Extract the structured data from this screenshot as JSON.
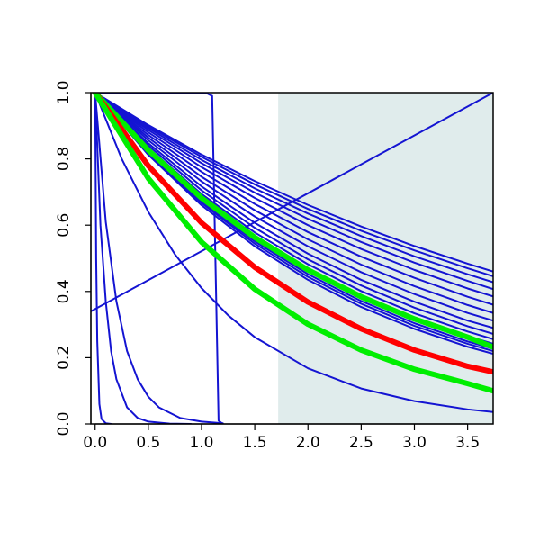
{
  "chart_data": {
    "type": "line",
    "title": "",
    "xlabel": "",
    "ylabel": "",
    "xlim": [
      -0.04,
      3.74
    ],
    "ylim": [
      0,
      1
    ],
    "x_ticks": [
      0,
      0.5,
      1,
      1.5,
      2,
      2.5,
      3,
      3.5
    ],
    "x_tick_labels": [
      "0.0",
      "0.5",
      "1.0",
      "1.5",
      "2.0",
      "2.5",
      "3.0",
      "3.5"
    ],
    "y_ticks": [
      0,
      0.2,
      0.4,
      0.6,
      0.8,
      1
    ],
    "y_tick_labels": [
      "0.0",
      "0.2",
      "0.4",
      "0.6",
      "0.8",
      "1.0"
    ],
    "grid": false,
    "legend": "none",
    "shaded_region": {
      "x_from": 1.72,
      "x_to": 3.74,
      "color": "#e0ecec"
    },
    "colors": {
      "blue": "#1414d2",
      "red": "#ff0000",
      "green": "#00ee00"
    },
    "series": [
      {
        "x": [
          0,
          0.5,
          1,
          1.5,
          2,
          2.5,
          3,
          3.5,
          3.74
        ],
        "y": [
          1,
          0.902,
          0.813,
          0.733,
          0.661,
          0.596,
          0.537,
          0.484,
          0.46
        ],
        "color": "#1414d2",
        "width": 2
      },
      {
        "x": [
          0,
          0.5,
          1,
          1.5,
          2,
          2.5,
          3,
          3.5,
          3.74
        ],
        "y": [
          1,
          0.898,
          0.806,
          0.723,
          0.649,
          0.583,
          0.524,
          0.47,
          0.446
        ],
        "color": "#1414d2",
        "width": 2
      },
      {
        "x": [
          0,
          0.5,
          1,
          1.5,
          2,
          2.5,
          3,
          3.5,
          3.74
        ],
        "y": [
          1,
          0.893,
          0.797,
          0.711,
          0.635,
          0.567,
          0.506,
          0.452,
          0.428
        ],
        "color": "#1414d2",
        "width": 2
      },
      {
        "x": [
          0,
          0.5,
          1,
          1.5,
          2,
          2.5,
          3,
          3.5,
          3.74
        ],
        "y": [
          1,
          0.887,
          0.787,
          0.698,
          0.619,
          0.549,
          0.487,
          0.432,
          0.407
        ],
        "color": "#1414d2",
        "width": 2
      },
      {
        "x": [
          0,
          0.5,
          1,
          1.5,
          2,
          2.5,
          3,
          3.5,
          3.74
        ],
        "y": [
          1,
          0.88,
          0.775,
          0.682,
          0.6,
          0.528,
          0.465,
          0.409,
          0.385
        ],
        "color": "#1414d2",
        "width": 2
      },
      {
        "x": [
          0,
          0.5,
          1,
          1.5,
          2,
          2.5,
          3,
          3.5,
          3.74
        ],
        "y": [
          1,
          0.872,
          0.761,
          0.664,
          0.579,
          0.505,
          0.441,
          0.384,
          0.36
        ],
        "color": "#1414d2",
        "width": 2
      },
      {
        "x": [
          0,
          0.5,
          1,
          1.5,
          2,
          2.5,
          3,
          3.5,
          3.74
        ],
        "y": [
          1,
          0.864,
          0.746,
          0.645,
          0.557,
          0.481,
          0.416,
          0.359,
          0.335
        ],
        "color": "#1414d2",
        "width": 2
      },
      {
        "x": [
          0,
          0.5,
          1,
          1.5,
          2,
          2.5,
          3,
          3.5,
          3.74
        ],
        "y": [
          1,
          0.856,
          0.732,
          0.626,
          0.536,
          0.458,
          0.392,
          0.335,
          0.312
        ],
        "color": "#1414d2",
        "width": 2
      },
      {
        "x": [
          0,
          0.5,
          1,
          1.5,
          2,
          2.5,
          3,
          3.5,
          3.74
        ],
        "y": [
          1,
          0.847,
          0.717,
          0.607,
          0.514,
          0.435,
          0.369,
          0.312,
          0.29
        ],
        "color": "#1414d2",
        "width": 2
      },
      {
        "x": [
          0,
          0.5,
          1,
          1.5,
          2,
          2.5,
          3,
          3.5,
          3.74
        ],
        "y": [
          1,
          0.84,
          0.705,
          0.592,
          0.497,
          0.418,
          0.351,
          0.295,
          0.272
        ],
        "color": "#1414d2",
        "width": 2
      },
      {
        "x": [
          0,
          0.5,
          1,
          1.5,
          2,
          2.5,
          3,
          3.5,
          3.74
        ],
        "y": [
          1,
          0.833,
          0.694,
          0.578,
          0.482,
          0.401,
          0.334,
          0.279,
          0.256
        ],
        "color": "#1414d2",
        "width": 2
      },
      {
        "x": [
          0,
          0.5,
          1,
          1.5,
          2,
          2.5,
          3,
          3.5,
          3.74
        ],
        "y": [
          1,
          0.827,
          0.684,
          0.566,
          0.468,
          0.387,
          0.32,
          0.265,
          0.242
        ],
        "color": "#1414d2",
        "width": 2
      },
      {
        "x": [
          0,
          0.5,
          1,
          1.5,
          2,
          2.5,
          3,
          3.5,
          3.74
        ],
        "y": [
          1,
          0.82,
          0.672,
          0.551,
          0.452,
          0.371,
          0.304,
          0.249,
          0.227
        ],
        "color": "#1414d2",
        "width": 2
      },
      {
        "x": [
          0,
          0.5,
          1,
          1.5,
          2,
          2.5,
          3,
          3.5,
          3.74
        ],
        "y": [
          1,
          0.816,
          0.667,
          0.544,
          0.444,
          0.363,
          0.296,
          0.242,
          0.22
        ],
        "color": "#1414d2",
        "width": 2
      },
      {
        "x": [
          0,
          0.5,
          1,
          1.5,
          2,
          2.5,
          3,
          3.5,
          3.74
        ],
        "y": [
          1,
          0.812,
          0.66,
          0.536,
          0.435,
          0.353,
          0.287,
          0.233,
          0.212
        ],
        "color": "#1414d2",
        "width": 2
      },
      {
        "x": [
          0,
          0.25,
          0.5,
          0.75,
          1,
          1.25,
          1.5,
          2,
          2.5,
          3,
          3.5,
          3.74
        ],
        "y": [
          1,
          0.8,
          0.64,
          0.512,
          0.41,
          0.328,
          0.262,
          0.168,
          0.107,
          0.069,
          0.044,
          0.036
        ],
        "color": "#1414d2",
        "width": 2
      },
      {
        "x": [
          0,
          0.1,
          0.2,
          0.3,
          0.4,
          0.5,
          0.6,
          0.8,
          1,
          1.2
        ],
        "y": [
          1,
          0.61,
          0.37,
          0.22,
          0.135,
          0.082,
          0.05,
          0.018,
          0.007,
          0.002
        ],
        "color": "#1414d2",
        "width": 2
      },
      {
        "x": [
          0,
          0.05,
          0.1,
          0.15,
          0.2,
          0.3,
          0.4,
          0.5,
          0.7,
          0.9
        ],
        "y": [
          1,
          0.6,
          0.37,
          0.22,
          0.135,
          0.05,
          0.018,
          0.007,
          0.001,
          0
        ],
        "color": "#1414d2",
        "width": 2
      },
      {
        "x": [
          0,
          0.01,
          0.02,
          0.04,
          0.06,
          0.1,
          0.15
        ],
        "y": [
          1,
          0.5,
          0.25,
          0.06,
          0.015,
          0.002,
          0
        ],
        "color": "#1414d2",
        "width": 2
      },
      {
        "x": [
          0,
          0.95,
          1.05,
          1.1,
          1.13,
          1.16,
          1.2
        ],
        "y": [
          1,
          1,
          0.998,
          0.99,
          0.5,
          0.01,
          0
        ],
        "color": "#1414d2",
        "width": 2
      },
      {
        "x": [
          -0.04,
          3.74
        ],
        "y": [
          0.34,
          1
        ],
        "color": "#1414d2",
        "width": 2
      },
      {
        "x": [
          0,
          0.5,
          1,
          1.5,
          2,
          2.5,
          3,
          3.5,
          3.74
        ],
        "y": [
          1,
          0.826,
          0.682,
          0.563,
          0.465,
          0.384,
          0.317,
          0.262,
          0.232
        ],
        "color": "#00ee00",
        "width": 6
      },
      {
        "x": [
          0,
          0.5,
          1,
          1.5,
          2,
          2.5,
          3,
          3.5,
          3.74
        ],
        "y": [
          1,
          0.779,
          0.607,
          0.473,
          0.368,
          0.287,
          0.223,
          0.174,
          0.157
        ],
        "color": "#ff0000",
        "width": 6
      },
      {
        "x": [
          0,
          0.5,
          1,
          1.5,
          2,
          2.5,
          3,
          3.5,
          3.74
        ],
        "y": [
          1,
          0.741,
          0.549,
          0.407,
          0.301,
          0.223,
          0.165,
          0.122,
          0.1
        ],
        "color": "#00ee00",
        "width": 6
      }
    ]
  }
}
